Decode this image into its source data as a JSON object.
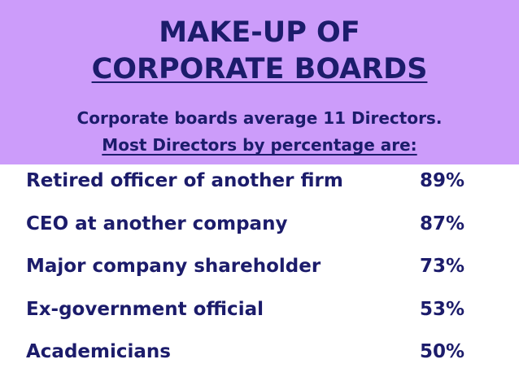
{
  "header": {
    "title": [
      "MAKE-UP OF",
      "CORPORATE BOARDS"
    ],
    "subtitle": [
      "Corporate boards average 11 Directors.",
      "Most Directors by percentage are:"
    ]
  },
  "table": {
    "rows": [
      [
        "Retired officer of another firm",
        "89%"
      ],
      [
        "CEO at another company",
        "87%"
      ],
      [
        "Major company shareholder",
        "73%"
      ],
      [
        "Ex-government official",
        "53%"
      ],
      [
        "Academicians",
        "50%"
      ]
    ]
  }
}
